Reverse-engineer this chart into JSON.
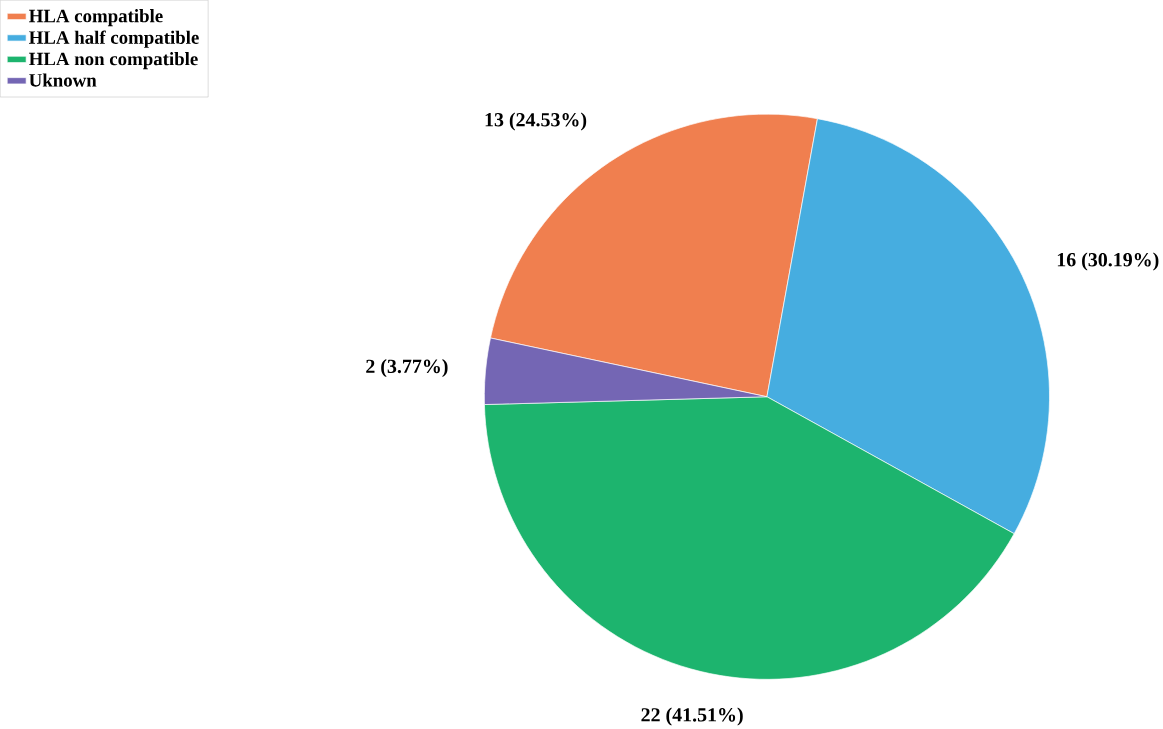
{
  "chart_data": {
    "type": "pie",
    "categories": [
      "HLA compatible",
      "HLA half compatible",
      "HLA non compatible",
      "Uknown"
    ],
    "values": [
      13,
      16,
      22,
      2
    ],
    "colors": [
      "#f07f4f",
      "#46ade0",
      "#1db46e",
      "#7466b4"
    ],
    "value_labels": [
      "13 (24.53%)",
      "16 (30.19%)",
      "22 (41.51%)",
      "2 (3.77%)"
    ],
    "legend": "top left"
  }
}
